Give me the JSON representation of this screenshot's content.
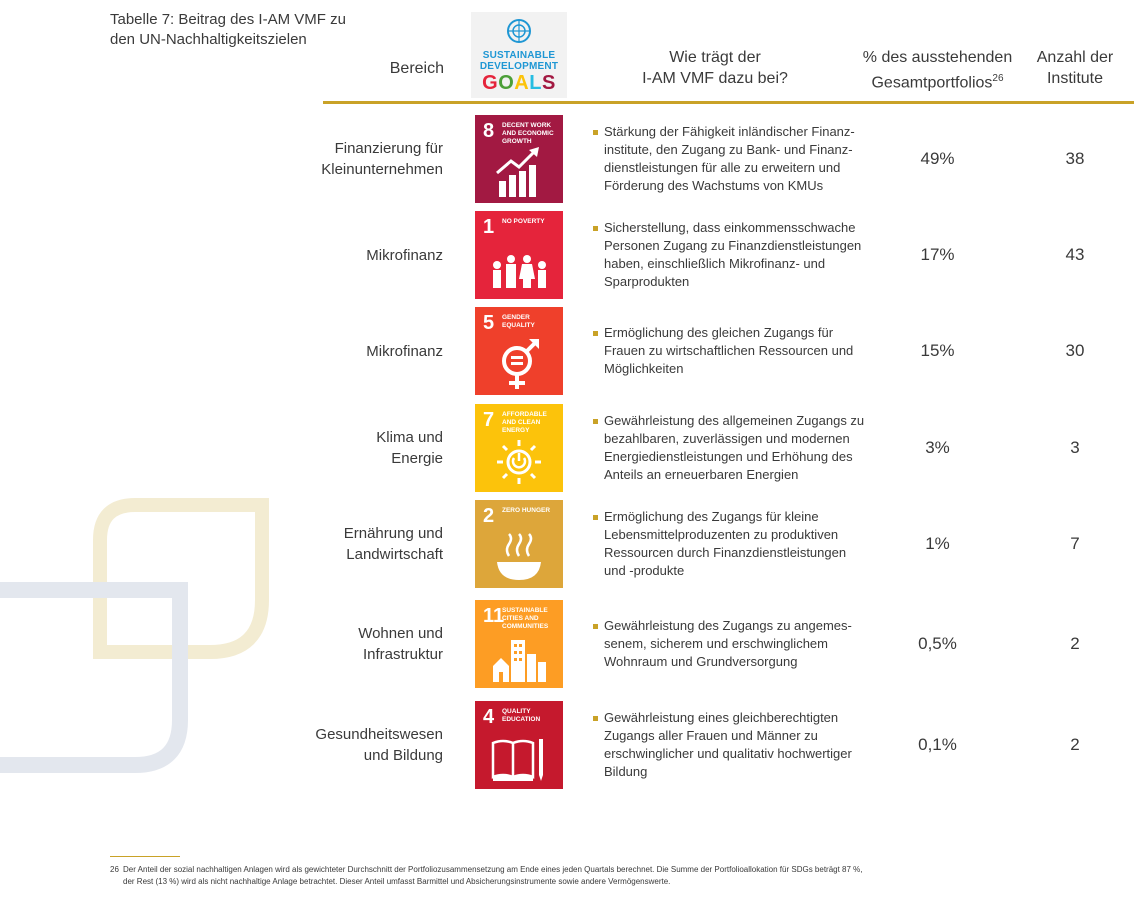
{
  "table_title": "Tabelle 7: Beitrag des I-AM VMF zu den UN-Nachhaltigkeitszielen",
  "header": {
    "bereich": "Bereich",
    "sdg_logo_line1": "SUSTAINABLE DEVELOPMENT",
    "sdg_logo_line2": "GOALS",
    "how_line1": "Wie trägt der",
    "how_line2": "I-AM VMF dazu bei?",
    "pct_line1": "% des ausstehenden",
    "pct_line2": "Gesamtportfolios",
    "pct_footnote_ref": "26",
    "count_line1": "Anzahl der",
    "count_line2": "Institute"
  },
  "colors": {
    "gold": "#c9a227",
    "sdg_blue": "#1f97d4"
  },
  "rows": [
    {
      "area_line1": "Finanzierung für",
      "area_line2": "Kleinunternehmen",
      "sdg_number": "8",
      "sdg_label": "DECENT WORK AND ECONOMIC GROWTH",
      "sdg_color": "#a21942",
      "icon": "growth-chart-icon",
      "description": "Stärkung der Fähigkeit inländischer Finanz­institute, den Zugang zu Bank- und Finanz­dienstleistungen für alle zu erweitern und Förderung des Wachstums von KMUs",
      "percent": "49%",
      "count": "38"
    },
    {
      "area_line1": "Mikrofinanz",
      "area_line2": "",
      "sdg_number": "1",
      "sdg_label": "NO POVERTY",
      "sdg_color": "#e5243b",
      "icon": "family-icon",
      "description": "Sicherstellung, dass einkommensschwache Personen Zugang zu Finanzdienstleistungen haben, einschließlich Mikrofinanz- und Sparprodukten",
      "percent": "17%",
      "count": "43"
    },
    {
      "area_line1": "Mikrofinanz",
      "area_line2": "",
      "sdg_number": "5",
      "sdg_label": "GENDER EQUALITY",
      "sdg_color": "#ef402b",
      "icon": "gender-equality-icon",
      "description": "Ermöglichung des gleichen Zugangs für Frauen zu wirtschaftlichen Ressourcen und Möglichkeiten",
      "percent": "15%",
      "count": "30"
    },
    {
      "area_line1": "Klima und",
      "area_line2": "Energie",
      "sdg_number": "7",
      "sdg_label": "AFFORDABLE AND CLEAN ENERGY",
      "sdg_color": "#fcc30b",
      "icon": "sun-power-icon",
      "description": "Gewährleistung des allgemeinen Zugangs zu bezahlbaren, zuverlässigen und modernen Energiedienstleistungen und Erhöhung des Anteils an erneuerbaren Energien",
      "percent": "3%",
      "count": "3"
    },
    {
      "area_line1": "Ernährung und",
      "area_line2": "Landwirtschaft",
      "sdg_number": "2",
      "sdg_label": "ZERO HUNGER",
      "sdg_color": "#dda63a",
      "icon": "bowl-icon",
      "description": "Ermöglichung des Zugangs für kleine Lebensmittelproduzenten zu produktiven Ressourcen durch Finanzdienstleistungen und -produkte",
      "percent": "1%",
      "count": "7"
    },
    {
      "area_line1": "Wohnen und",
      "area_line2": "Infrastruktur",
      "sdg_number": "11",
      "sdg_label": "SUSTAINABLE CITIES AND COMMUNITIES",
      "sdg_color": "#fd9d24",
      "icon": "city-icon",
      "description": "Gewährleistung des Zugangs zu angemes­senem, sicherem und erschwinglichem Wohnraum und Grundversorgung",
      "percent": "0,5%",
      "count": "2"
    },
    {
      "area_line1": "Gesundheitswesen",
      "area_line2": "und Bildung",
      "sdg_number": "4",
      "sdg_label": "QUALITY EDUCATION",
      "sdg_color": "#c5192d",
      "icon": "book-pencil-icon",
      "description": "Gewährleistung eines gleichberechtigten Zugangs aller Frauen und Männer zu erschwinglicher und qualitativ hoch­wertiger Bildung",
      "percent": "0,1%",
      "count": "2"
    }
  ],
  "footnote": {
    "number": "26",
    "text": "Der Anteil der sozial nachhaltigen Anlagen wird als gewichteter Durchschnitt der Portfoliozusammensetzung am Ende eines jeden Quartals berechnet. Die Summe der Portfolioallokation für SDGs beträgt 87 %, der Rest (13 %) wird als nicht nachhaltige Anlage betrachtet. Dieser Anteil umfasst Barmittel und Absicherungsinstrumente sowie andere Vermögenswerte."
  }
}
